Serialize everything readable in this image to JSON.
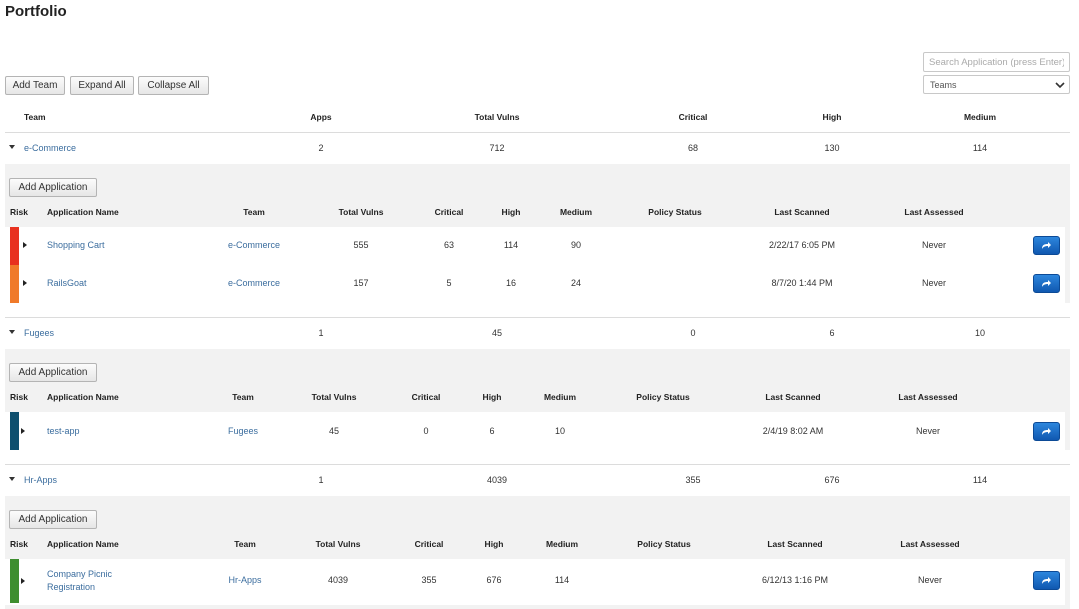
{
  "page": {
    "title": "Portfolio"
  },
  "toolbar": {
    "add_team": "Add Team",
    "expand_all": "Expand All",
    "collapse_all": "Collapse All"
  },
  "search": {
    "placeholder": "Search Application (press Enter)"
  },
  "team_filter": {
    "selected": "Teams",
    "icon": "chevron-down-icon"
  },
  "team_table": {
    "headers": {
      "team": "Team",
      "apps": "Apps",
      "total_vulns": "Total Vulns",
      "critical": "Critical",
      "high": "High",
      "medium": "Medium"
    },
    "teams": [
      {
        "name": "e-Commerce",
        "apps": "2",
        "total_vulns": "712",
        "critical": "68",
        "high": "130",
        "medium": "114"
      },
      {
        "name": "Fugees",
        "apps": "1",
        "total_vulns": "45",
        "critical": "0",
        "high": "6",
        "medium": "10"
      },
      {
        "name": "Hr-Apps",
        "apps": "1",
        "total_vulns": "4039",
        "critical": "355",
        "high": "676",
        "medium": "114"
      }
    ]
  },
  "app_table": {
    "add_application": "Add Application",
    "headers": {
      "risk": "Risk",
      "application_name": "Application Name",
      "team": "Team",
      "total_vulns": "Total Vulns",
      "critical": "Critical",
      "high": "High",
      "medium": "Medium",
      "policy_status": "Policy Status",
      "last_scanned": "Last Scanned",
      "last_assessed": "Last Assessed"
    },
    "risk_colors": {
      "critical": "#e8311f",
      "high": "#f07a2a",
      "medium": "#0e4f6e",
      "low": "#3e8e2f"
    },
    "action_icon": "share-arrow-icon",
    "groups": [
      {
        "apps": [
          {
            "name": "Shopping Cart",
            "team": "e-Commerce",
            "total_vulns": "555",
            "critical": "63",
            "high": "114",
            "medium": "90",
            "policy_status": "",
            "last_scanned": "2/22/17 6:05 PM",
            "last_assessed": "Never",
            "risk": "critical"
          },
          {
            "name": "RailsGoat",
            "team": "e-Commerce",
            "total_vulns": "157",
            "critical": "5",
            "high": "16",
            "medium": "24",
            "policy_status": "",
            "last_scanned": "8/7/20 1:44 PM",
            "last_assessed": "Never",
            "risk": "high"
          }
        ]
      },
      {
        "apps": [
          {
            "name": "test-app",
            "team": "Fugees",
            "total_vulns": "45",
            "critical": "0",
            "high": "6",
            "medium": "10",
            "policy_status": "",
            "last_scanned": "2/4/19 8:02 AM",
            "last_assessed": "Never",
            "risk": "medium"
          }
        ]
      },
      {
        "apps": [
          {
            "name_line1": "Company Picnic",
            "name_line2": "Registration",
            "team": "Hr-Apps",
            "total_vulns": "4039",
            "critical": "355",
            "high": "676",
            "medium": "114",
            "policy_status": "",
            "last_scanned": "6/12/13 1:16 PM",
            "last_assessed": "Never",
            "risk": "low"
          }
        ]
      }
    ]
  }
}
